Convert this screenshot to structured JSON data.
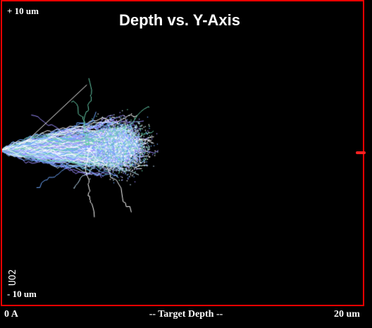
{
  "chart_data": {
    "type": "scatter",
    "title": "Depth vs. Y-Axis",
    "xlabel": "-- Target Depth --",
    "x_min_label": "0 A",
    "x_max_label": "20 um",
    "y_max_label": "+ 10 um",
    "y_min_label": "- 10 um",
    "xlim": [
      0,
      20
    ],
    "ylim": [
      -10,
      10
    ],
    "target_label": "UO2",
    "x_unit": "um",
    "y_unit": "um",
    "distribution": {
      "entry_y": 0.2,
      "core_center": [
        6.5,
        0.5
      ],
      "core_x_range": [
        0,
        9.2
      ],
      "core_y_range": [
        -3.6,
        3.6
      ],
      "outlier_points": [
        [
          4.9,
          4.8
        ],
        [
          3.9,
          3.4
        ],
        [
          5.1,
          -4.1
        ],
        [
          7.2,
          -3.8
        ],
        [
          4.0,
          -2.3
        ],
        [
          1.7,
          2.4
        ],
        [
          8.2,
          3.0
        ],
        [
          2.0,
          -2.3
        ]
      ]
    },
    "colors": {
      "frame": "#ff0000",
      "background": "#000000",
      "tracks": [
        "#ffffff",
        "#6fa8ff",
        "#9b8cff",
        "#66ccaa",
        "#c8e8ff"
      ],
      "text": "#ffffff"
    }
  }
}
